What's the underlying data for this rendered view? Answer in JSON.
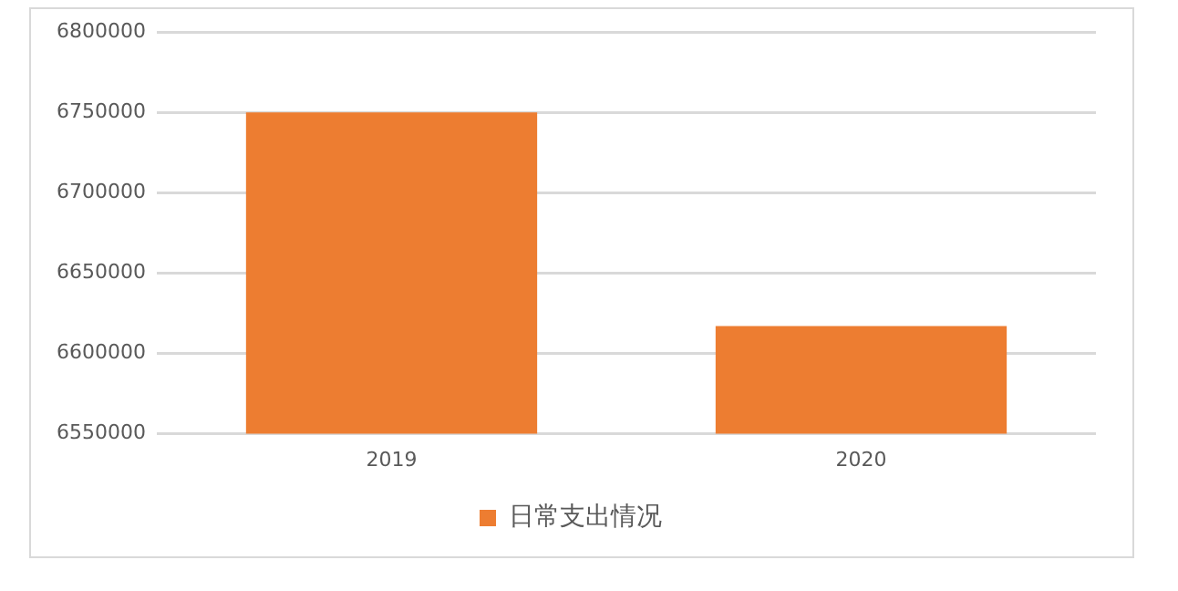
{
  "chart_data": {
    "type": "bar",
    "categories": [
      "2019",
      "2020"
    ],
    "series": [
      {
        "name": "日常支出情况",
        "color": "#ed7d31",
        "values": [
          6750000,
          6617000
        ]
      }
    ],
    "ylim": [
      6550000,
      6800000
    ],
    "yticks": [
      6550000,
      6600000,
      6650000,
      6700000,
      6750000,
      6800000
    ],
    "grid": "y",
    "legend": "bottom"
  }
}
